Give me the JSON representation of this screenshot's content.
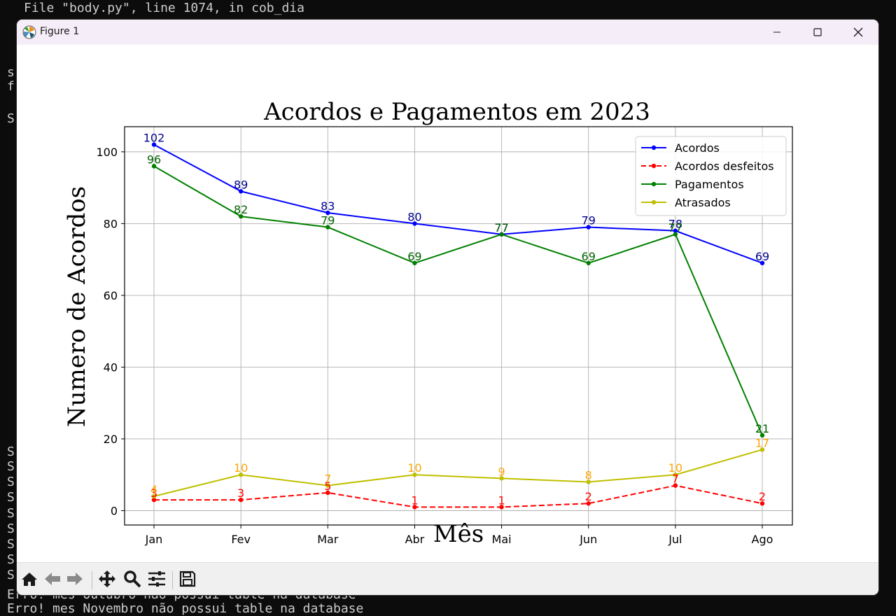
{
  "terminal": {
    "lines_top": [
      "File \"body.py\", line 1074, in cob_dia"
    ],
    "lines_left_top": [
      "s",
      "f",
      "",
      "S"
    ],
    "lines_left_bottom": [
      "S",
      "S",
      "S",
      "S",
      "S",
      "S",
      "S",
      "S",
      "S",
      "E"
    ],
    "lines_bottom": [
      "Erro! mes Outubro nao possui table na database",
      "Erro! mes Novembro não possui table na database"
    ]
  },
  "window": {
    "title": "Figure 1",
    "controls": {
      "minimize_icon": "minimize-icon",
      "maximize_icon": "maximize-icon",
      "close_icon": "close-icon"
    }
  },
  "toolbar": {
    "buttons": [
      "home-icon",
      "back-arrow-icon",
      "forward-arrow-icon",
      "pan-icon",
      "zoom-icon",
      "configure-subplots-icon",
      "save-icon"
    ]
  },
  "chart_data": {
    "type": "line",
    "title": "Acordos e Pagamentos em 2023",
    "xlabel": "Mês",
    "ylabel": "Numero de Acordos",
    "categories": [
      "Jan",
      "Fev",
      "Mar",
      "Abr",
      "Mai",
      "Jun",
      "Jul",
      "Ago"
    ],
    "ylim": [
      -4,
      107
    ],
    "yticks": [
      0,
      20,
      40,
      60,
      80,
      100
    ],
    "grid": true,
    "legend_position": "top-right",
    "series": [
      {
        "name": "Acordos",
        "values": [
          102,
          89,
          83,
          80,
          77,
          79,
          78,
          69
        ],
        "color": "#0000ff",
        "label_color": "#00008b",
        "dashed": false
      },
      {
        "name": "Acordos desfeitos",
        "values": [
          3,
          3,
          5,
          1,
          1,
          2,
          7,
          2
        ],
        "color": "#ff0000",
        "label_color": "#ff0000",
        "dashed": true
      },
      {
        "name": "Pagamentos",
        "values": [
          96,
          82,
          79,
          69,
          77,
          69,
          77,
          21
        ],
        "color": "#008000",
        "label_color": "#006400",
        "dashed": false
      },
      {
        "name": "Atrasados",
        "values": [
          4,
          10,
          7,
          10,
          9,
          8,
          10,
          17
        ],
        "color": "#bfbf00",
        "label_color": "#ffa500",
        "dashed": false
      }
    ]
  }
}
